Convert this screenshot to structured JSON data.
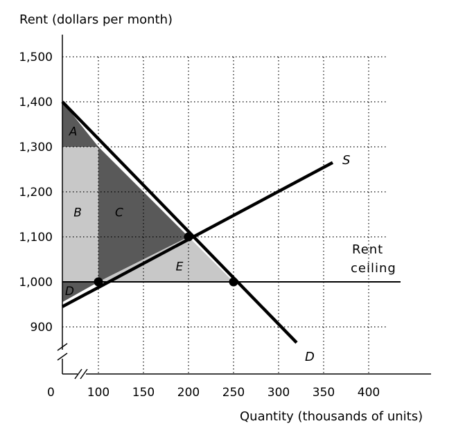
{
  "chart_data": {
    "type": "line",
    "ylabel": "Rent (dollars per month)",
    "xlabel": "Quantity (thousands of units)",
    "origin_label": "0",
    "xlim": [
      60,
      420
    ],
    "ylim": [
      900,
      1500
    ],
    "x_ticks": [
      100,
      150,
      200,
      250,
      300,
      350,
      400
    ],
    "x_tick_labels": [
      "100",
      "150",
      "200",
      "250",
      "300",
      "350",
      "400"
    ],
    "y_ticks": [
      900,
      1000,
      1100,
      1200,
      1300,
      1400,
      1500
    ],
    "y_tick_labels": [
      "900",
      "1,000",
      "1,100",
      "1,200",
      "1,300",
      "1,400",
      "1,500"
    ],
    "grid": true,
    "axis_breaks": [
      "x",
      "y"
    ],
    "series": [
      {
        "name": "S",
        "x": [
          60,
          360
        ],
        "y": [
          945,
          1265
        ]
      },
      {
        "name": "D",
        "x": [
          60,
          320
        ],
        "y": [
          1400,
          865
        ]
      }
    ],
    "ceiling": {
      "value": 1000,
      "x_range": [
        60,
        420
      ],
      "label_line1": "Rent",
      "label_line2": "ceiling"
    },
    "regions": [
      {
        "name": "A",
        "fill": "#595959",
        "points": [
          [
            60,
            1400
          ],
          [
            60,
            1300
          ],
          [
            100,
            1300
          ]
        ]
      },
      {
        "name": "B",
        "fill": "#c8c8c8",
        "points": [
          [
            60,
            1300
          ],
          [
            100,
            1300
          ],
          [
            100,
            1000
          ],
          [
            60,
            1000
          ]
        ]
      },
      {
        "name": "C",
        "fill": "#595959",
        "points": [
          [
            100,
            1300
          ],
          [
            100,
            1000
          ],
          [
            200,
            1100
          ]
        ]
      },
      {
        "name": "D",
        "fill": "#595959",
        "points": [
          [
            60,
            1000
          ],
          [
            100,
            1000
          ],
          [
            60,
            955
          ]
        ]
      },
      {
        "name": "E",
        "fill": "#c8c8c8",
        "points": [
          [
            100,
            1000
          ],
          [
            200,
            1100
          ],
          [
            250,
            1000
          ]
        ]
      }
    ],
    "region_labels": [
      {
        "text": "A",
        "x": 72,
        "y": 1335
      },
      {
        "text": "B",
        "x": 77,
        "y": 1155
      },
      {
        "text": "C",
        "x": 123,
        "y": 1155
      },
      {
        "text": "D",
        "x": 68,
        "y": 980
      },
      {
        "text": "E",
        "x": 190,
        "y": 1035
      }
    ],
    "points": [
      {
        "x": 100,
        "y": 1000
      },
      {
        "x": 200,
        "y": 1100
      },
      {
        "x": 250,
        "y": 1000
      }
    ],
    "colors": {
      "line": "#000000",
      "grid": "#000000",
      "dark_fill": "#595959",
      "light_fill": "#c8c8c8"
    }
  }
}
